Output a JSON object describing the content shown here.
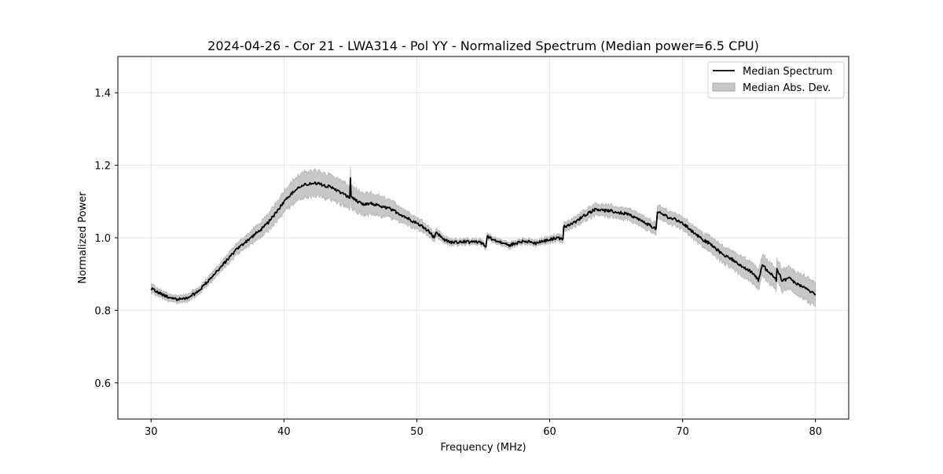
{
  "chart_data": {
    "type": "line",
    "title": "2024-04-26 - Cor 21 - LWA314 - Pol YY - Normalized Spectrum (Median power=6.5 CPU)",
    "xlabel": "Frequency (MHz)",
    "ylabel": "Normalized Power",
    "xlim": [
      27.5,
      82.5
    ],
    "ylim": [
      0.5,
      1.5
    ],
    "xticks": [
      30,
      40,
      50,
      60,
      70,
      80
    ],
    "yticks": [
      0.6,
      0.8,
      1.0,
      1.2,
      1.4
    ],
    "xtick_labels": [
      "30",
      "40",
      "50",
      "60",
      "70",
      "80"
    ],
    "ytick_labels": [
      "0.6",
      "0.8",
      "1.0",
      "1.2",
      "1.4"
    ],
    "grid": true,
    "legend_position": "top-right",
    "legend": [
      {
        "label": "Median Spectrum",
        "kind": "line",
        "color": "#000000"
      },
      {
        "label": "Median Abs. Dev.",
        "kind": "band",
        "color": "#c8c8c8"
      }
    ],
    "series": [
      {
        "name": "Median Spectrum",
        "color": "#000000",
        "x": [
          30.0,
          30.5,
          31.0,
          31.5,
          32.0,
          32.5,
          33.0,
          33.5,
          34.0,
          34.5,
          35.0,
          35.5,
          36.0,
          36.5,
          37.0,
          37.5,
          38.0,
          38.5,
          39.0,
          39.5,
          40.0,
          40.5,
          41.0,
          41.5,
          42.0,
          42.5,
          43.0,
          43.5,
          44.0,
          44.5,
          44.95,
          45.0,
          45.05,
          45.5,
          46.0,
          46.5,
          47.0,
          47.5,
          48.0,
          48.5,
          49.0,
          49.5,
          50.0,
          50.5,
          51.0,
          51.3,
          51.5,
          52.0,
          52.5,
          53.0,
          53.5,
          54.0,
          54.5,
          55.0,
          55.2,
          55.3,
          55.5,
          56.0,
          56.5,
          57.0,
          57.5,
          58.0,
          58.5,
          59.0,
          59.5,
          60.0,
          60.5,
          61.0,
          61.05,
          61.5,
          62.0,
          62.5,
          63.0,
          63.5,
          64.0,
          64.5,
          65.0,
          65.5,
          66.0,
          66.5,
          67.0,
          67.5,
          68.0,
          68.1,
          68.5,
          69.0,
          69.5,
          70.0,
          70.5,
          71.0,
          71.5,
          72.0,
          72.5,
          73.0,
          73.5,
          74.0,
          74.5,
          75.0,
          75.5,
          75.7,
          76.0,
          76.5,
          77.0,
          77.05,
          77.1,
          77.5,
          78.0,
          78.5,
          79.0,
          79.5,
          80.0
        ],
        "values": [
          0.86,
          0.85,
          0.84,
          0.835,
          0.83,
          0.832,
          0.84,
          0.85,
          0.87,
          0.89,
          0.91,
          0.93,
          0.95,
          0.97,
          0.985,
          1.0,
          1.015,
          1.03,
          1.05,
          1.075,
          1.1,
          1.12,
          1.135,
          1.145,
          1.15,
          1.15,
          1.145,
          1.14,
          1.13,
          1.12,
          1.11,
          1.165,
          1.115,
          1.1,
          1.09,
          1.095,
          1.09,
          1.085,
          1.08,
          1.07,
          1.06,
          1.05,
          1.04,
          1.03,
          1.015,
          1.0,
          1.015,
          0.995,
          0.988,
          0.988,
          0.99,
          0.988,
          0.988,
          0.985,
          0.975,
          1.005,
          1.0,
          0.99,
          0.985,
          0.98,
          0.985,
          0.99,
          0.988,
          0.985,
          0.99,
          0.995,
          1.0,
          0.998,
          1.03,
          1.035,
          1.045,
          1.06,
          1.07,
          1.08,
          1.075,
          1.075,
          1.07,
          1.068,
          1.065,
          1.055,
          1.045,
          1.035,
          1.025,
          1.07,
          1.065,
          1.055,
          1.05,
          1.04,
          1.025,
          1.01,
          0.995,
          0.985,
          0.97,
          0.955,
          0.945,
          0.935,
          0.92,
          0.91,
          0.895,
          0.88,
          0.925,
          0.905,
          0.89,
          0.88,
          0.915,
          0.88,
          0.89,
          0.875,
          0.865,
          0.855,
          0.845
        ]
      }
    ],
    "band": {
      "name": "Median Abs. Dev.",
      "color": "#c8c8c8",
      "halfwidth": [
        0.012,
        0.01,
        0.01,
        0.01,
        0.01,
        0.01,
        0.01,
        0.01,
        0.01,
        0.012,
        0.012,
        0.013,
        0.015,
        0.016,
        0.017,
        0.018,
        0.02,
        0.022,
        0.025,
        0.028,
        0.03,
        0.032,
        0.034,
        0.035,
        0.035,
        0.035,
        0.035,
        0.035,
        0.034,
        0.033,
        0.032,
        0.032,
        0.032,
        0.031,
        0.03,
        0.029,
        0.028,
        0.026,
        0.024,
        0.022,
        0.02,
        0.018,
        0.016,
        0.015,
        0.013,
        0.012,
        0.012,
        0.01,
        0.009,
        0.009,
        0.008,
        0.008,
        0.008,
        0.008,
        0.008,
        0.008,
        0.008,
        0.008,
        0.008,
        0.008,
        0.008,
        0.008,
        0.008,
        0.008,
        0.008,
        0.009,
        0.01,
        0.01,
        0.012,
        0.013,
        0.014,
        0.015,
        0.016,
        0.016,
        0.016,
        0.016,
        0.016,
        0.016,
        0.016,
        0.016,
        0.016,
        0.016,
        0.016,
        0.018,
        0.018,
        0.018,
        0.018,
        0.018,
        0.018,
        0.019,
        0.02,
        0.021,
        0.022,
        0.023,
        0.024,
        0.025,
        0.026,
        0.027,
        0.028,
        0.028,
        0.03,
        0.03,
        0.03,
        0.03,
        0.03,
        0.03,
        0.03,
        0.031,
        0.032,
        0.033,
        0.034
      ]
    }
  }
}
